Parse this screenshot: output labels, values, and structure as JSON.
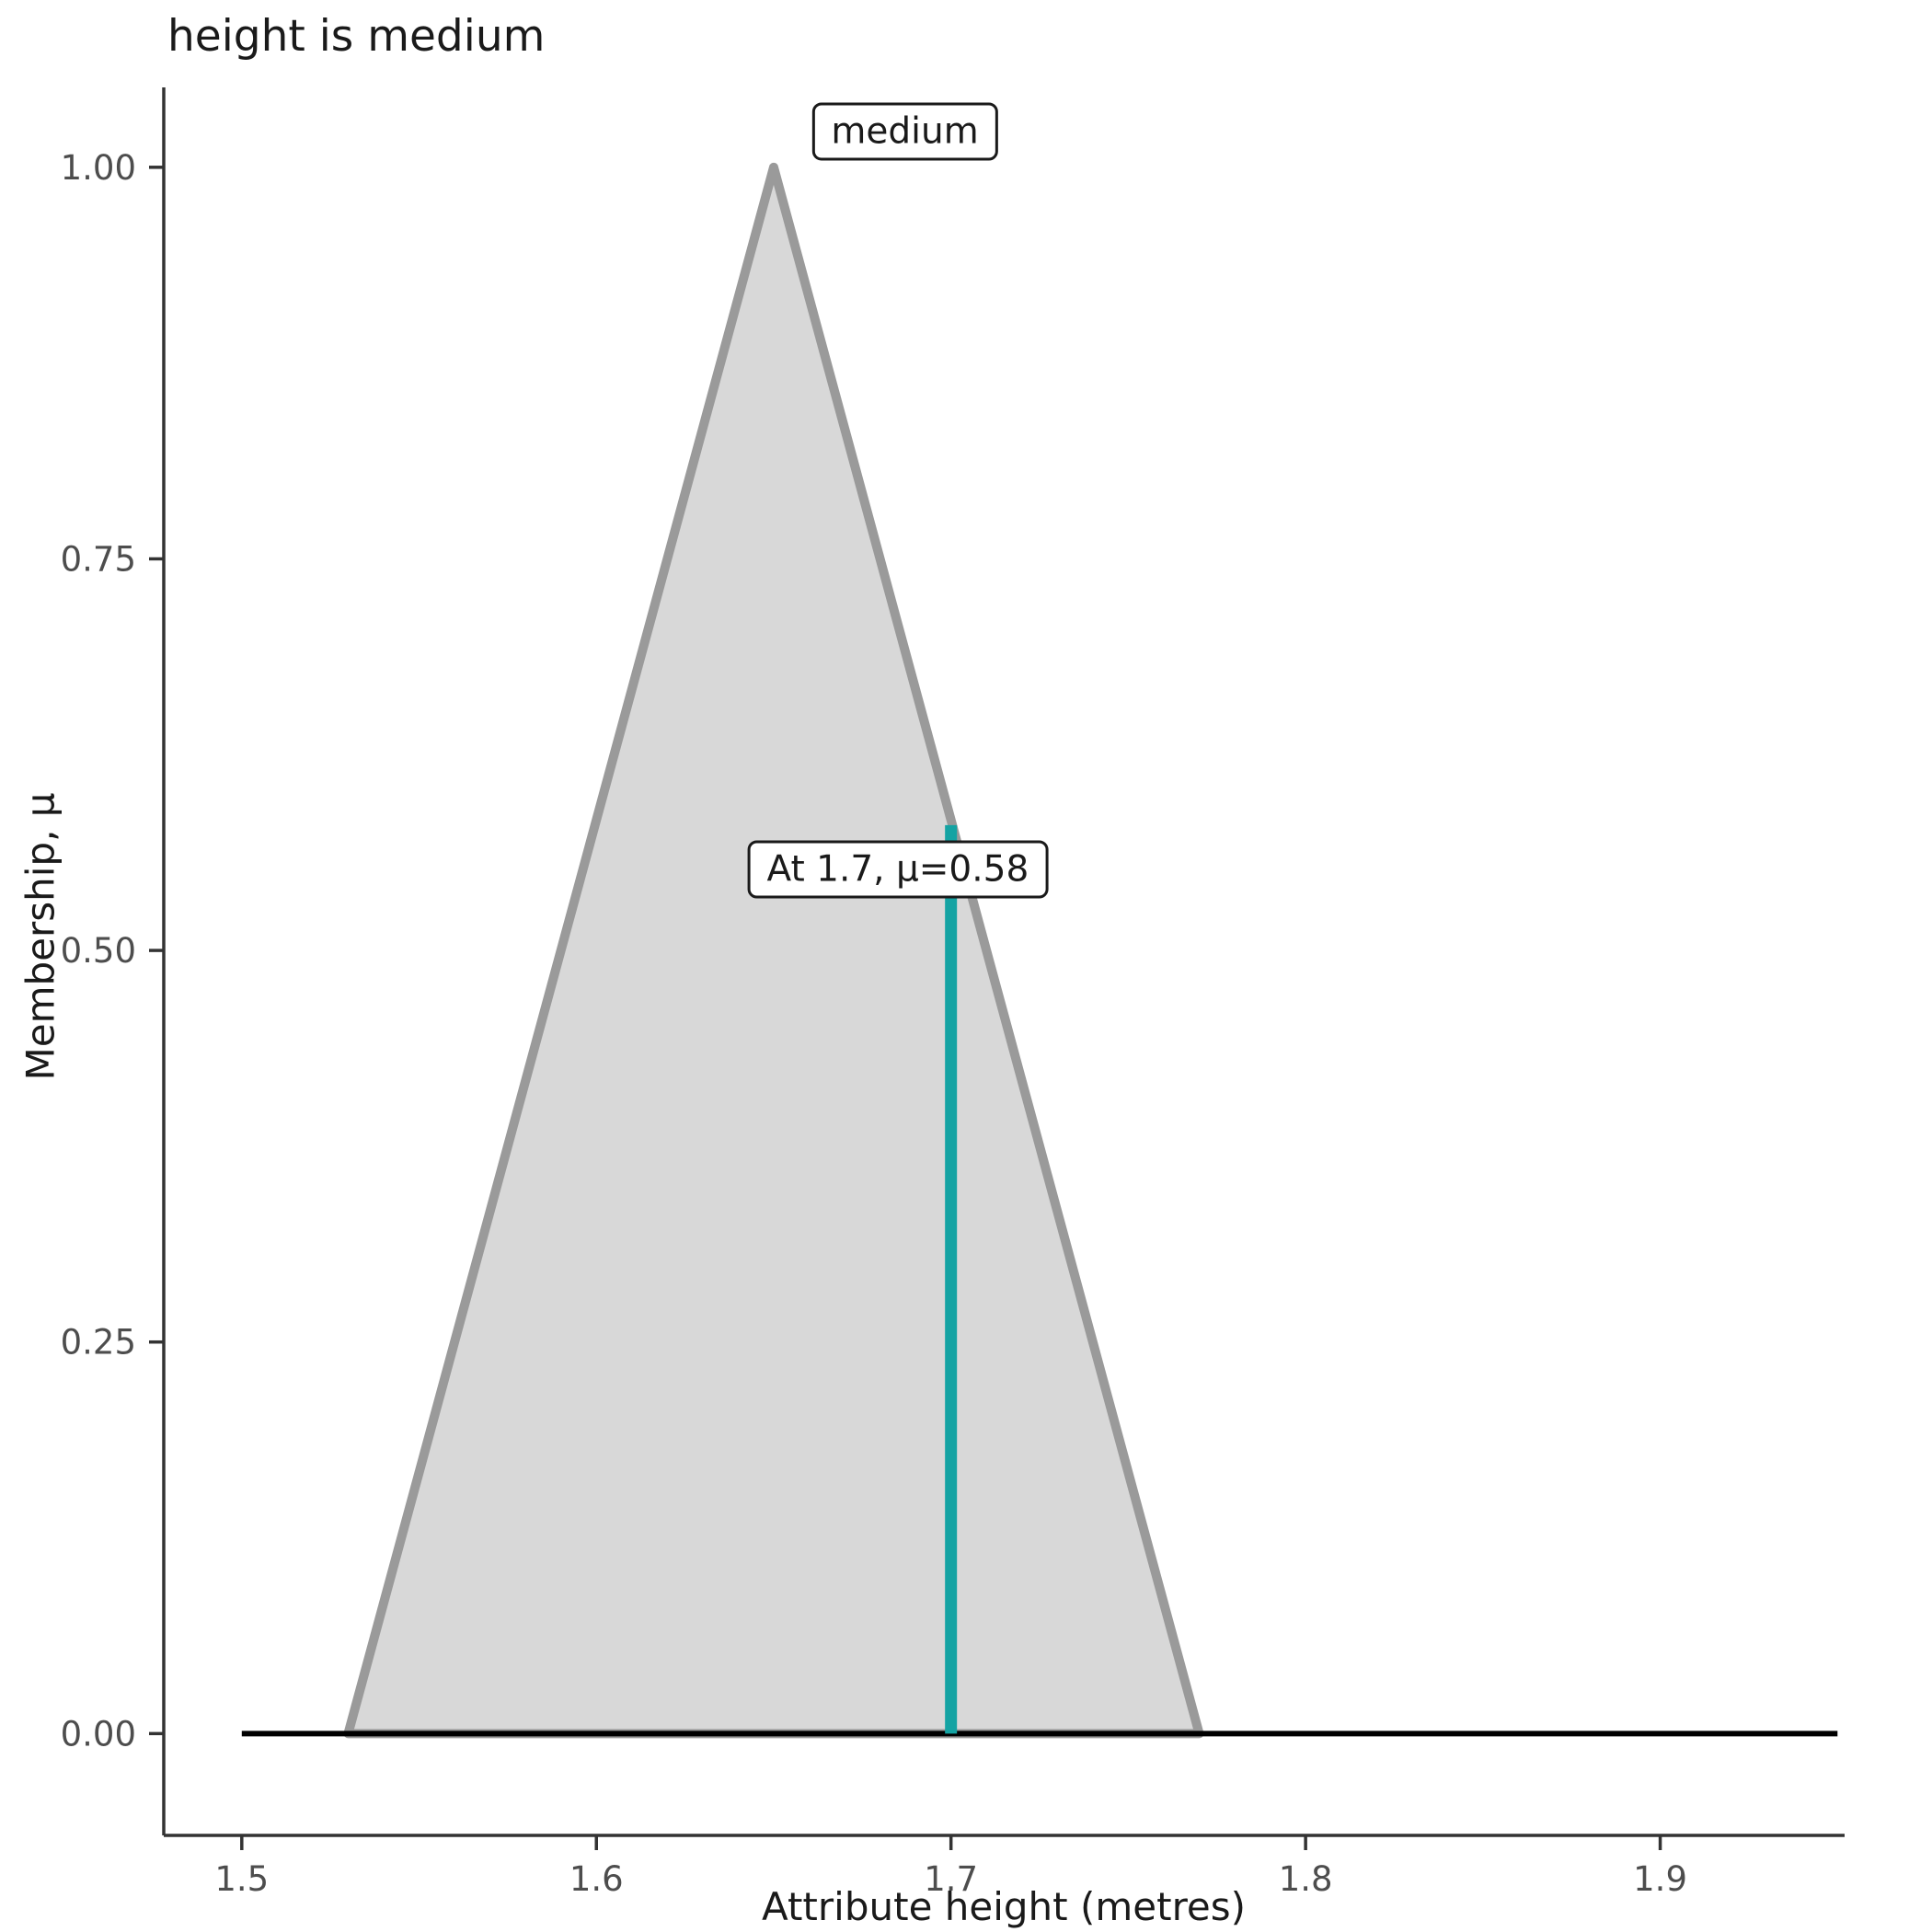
{
  "chart_data": {
    "type": "area",
    "title": "height is medium",
    "xlabel": "Attribute height (metres)",
    "ylabel": "Membership, μ",
    "xlim": [
      1.478,
      1.952
    ],
    "ylim": [
      -0.065,
      1.051
    ],
    "grid": "off",
    "legend": "none",
    "x_ticks": {
      "values": [
        1.5,
        1.6,
        1.7,
        1.8,
        1.9
      ],
      "labels": [
        "1.5",
        "1.6",
        "1.7",
        "1.8",
        "1.9"
      ]
    },
    "y_ticks": {
      "values": [
        0,
        0.25,
        0.5,
        0.75,
        1
      ],
      "labels": [
        "0.00",
        "0.25",
        "0.50",
        "0.75",
        "1.00"
      ]
    },
    "membership_function": {
      "name": "medium",
      "shape": "triangular",
      "points_x": [
        1.53,
        1.65,
        1.77
      ],
      "points_y": [
        0,
        1,
        0
      ],
      "fill": "#d8d8d8",
      "stroke": "#9a9a9a"
    },
    "zero_line": {
      "x": [
        1.5,
        1.95
      ],
      "y": [
        0,
        0
      ],
      "color": "#000000"
    },
    "marker": {
      "x": 1.7,
      "mu": 0.58,
      "color": "#14a3a3",
      "label": "At 1.7, μ=0.58",
      "label_x": 1.685,
      "label_mu": 0.552
    },
    "set_label": {
      "text": "medium",
      "x": 1.687,
      "mu": 1.023
    },
    "axis_color": "#333333",
    "tick_label_color": "#4d4d4d",
    "text_color": "#1a1a1a"
  }
}
